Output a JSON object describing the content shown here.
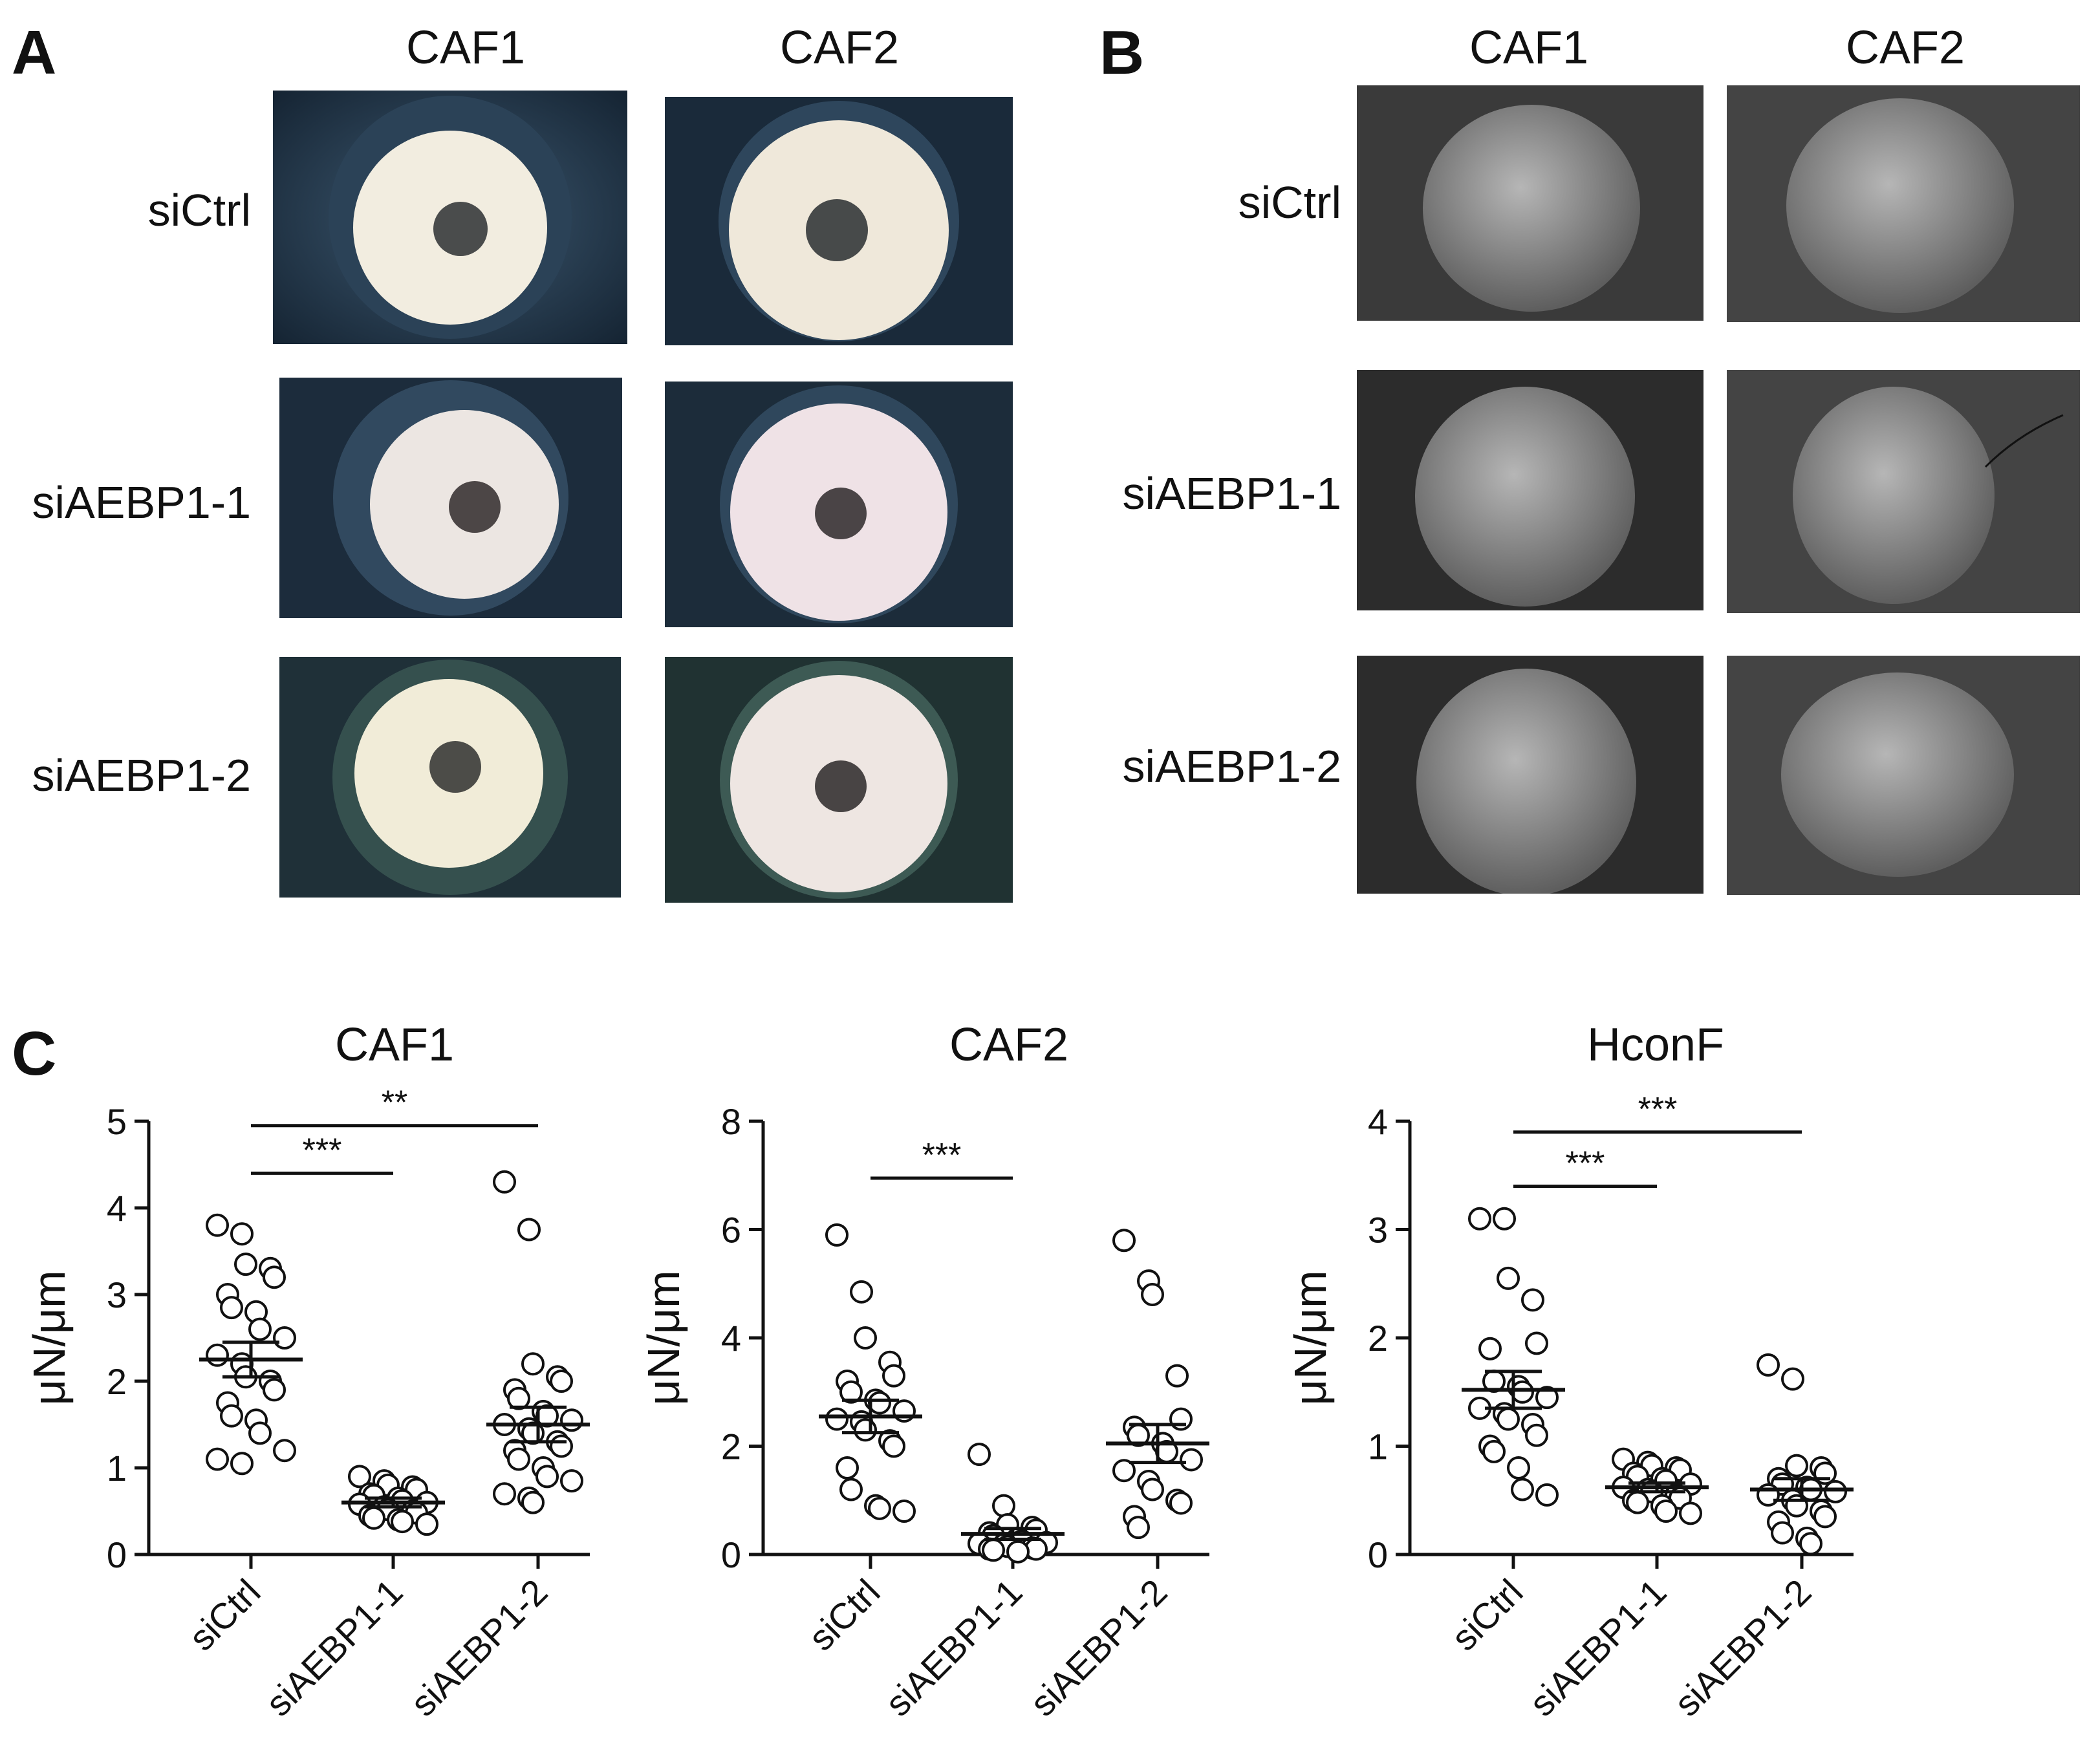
{
  "panels": {
    "A": {
      "letter": "A",
      "columns": [
        "CAF1",
        "CAF2"
      ],
      "rows": [
        "siCtrl",
        "siAEBP1-1",
        "siAEBP1-2"
      ]
    },
    "B": {
      "letter": "B",
      "columns": [
        "CAF1",
        "CAF2"
      ],
      "rows": [
        "siCtrl",
        "siAEBP1-1",
        "siAEBP1-2"
      ]
    },
    "C": {
      "letter": "C"
    }
  },
  "colors": {
    "ink": "#111111",
    "light_photo_bg": "#1c2c3a",
    "light_photo_disc": "#f2ede0",
    "sem_bg": "#3a3a3a",
    "sem_sphere": "#8a8a8a"
  },
  "chart_data": [
    {
      "type": "scatter",
      "title": "CAF1",
      "xlabel": "",
      "ylabel": "μN/μm",
      "ylim": [
        0,
        5
      ],
      "yticks": [
        0,
        1,
        2,
        3,
        4,
        5
      ],
      "categories": [
        "siCtrl",
        "siAEBP1-1",
        "siAEBP1-2"
      ],
      "series": [
        {
          "category": "siCtrl",
          "values": [
            3.8,
            3.7,
            3.35,
            3.3,
            3.2,
            3.0,
            2.85,
            2.8,
            2.6,
            2.5,
            2.3,
            2.2,
            2.05,
            2.0,
            1.9,
            1.75,
            1.6,
            1.55,
            1.4,
            1.2,
            1.1,
            1.05
          ],
          "mean": 2.25,
          "sem": 0.2
        },
        {
          "category": "siAEBP1-1",
          "values": [
            0.9,
            0.85,
            0.8,
            0.78,
            0.75,
            0.7,
            0.68,
            0.65,
            0.62,
            0.6,
            0.58,
            0.55,
            0.52,
            0.5,
            0.48,
            0.45,
            0.42,
            0.4,
            0.38,
            0.35
          ],
          "mean": 0.6,
          "sem": 0.05
        },
        {
          "category": "siAEBP1-2",
          "values": [
            4.3,
            3.75,
            2.2,
            2.05,
            2.0,
            1.9,
            1.8,
            1.65,
            1.6,
            1.55,
            1.5,
            1.45,
            1.4,
            1.3,
            1.25,
            1.2,
            1.1,
            1.0,
            0.9,
            0.85,
            0.7,
            0.65,
            0.6
          ],
          "mean": 1.5,
          "sem": 0.2
        }
      ],
      "significance": [
        {
          "from": "siCtrl",
          "to": "siAEBP1-1",
          "y": 4.4,
          "label": "***"
        },
        {
          "from": "siCtrl",
          "to": "siAEBP1-2",
          "y": 4.95,
          "label": "**"
        }
      ]
    },
    {
      "type": "scatter",
      "title": "CAF2",
      "xlabel": "",
      "ylabel": "μN/μm",
      "ylim": [
        0,
        8
      ],
      "yticks": [
        0,
        2,
        4,
        6,
        8
      ],
      "categories": [
        "siCtrl",
        "siAEBP1-1",
        "siAEBP1-2"
      ],
      "series": [
        {
          "category": "siCtrl",
          "values": [
            5.9,
            4.85,
            4.0,
            3.55,
            3.3,
            3.2,
            3.0,
            2.85,
            2.8,
            2.65,
            2.5,
            2.45,
            2.3,
            2.1,
            2.0,
            1.6,
            1.2,
            0.9,
            0.85,
            0.8
          ],
          "mean": 2.55,
          "sem": 0.3
        },
        {
          "category": "siAEBP1-1",
          "values": [
            1.85,
            0.9,
            0.55,
            0.5,
            0.45,
            0.4,
            0.35,
            0.3,
            0.25,
            0.22,
            0.2,
            0.18,
            0.15,
            0.12,
            0.1,
            0.1,
            0.08,
            0.05
          ],
          "mean": 0.38,
          "sem": 0.1
        },
        {
          "category": "siAEBP1-2",
          "values": [
            5.8,
            5.05,
            4.8,
            3.3,
            2.5,
            2.35,
            2.2,
            2.05,
            1.9,
            1.75,
            1.55,
            1.35,
            1.2,
            1.0,
            0.95,
            0.7,
            0.5
          ],
          "mean": 2.05,
          "sem": 0.35
        }
      ],
      "significance": [
        {
          "from": "siCtrl",
          "to": "siAEBP1-1",
          "y": 6.95,
          "label": "***"
        }
      ]
    },
    {
      "type": "scatter",
      "title": "HconF",
      "xlabel": "",
      "ylabel": "μN/μm",
      "ylim": [
        0,
        4
      ],
      "yticks": [
        0,
        1,
        2,
        3,
        4
      ],
      "categories": [
        "siCtrl",
        "siAEBP1-1",
        "siAEBP1-2"
      ],
      "series": [
        {
          "category": "siCtrl",
          "values": [
            3.1,
            3.1,
            2.55,
            2.35,
            1.95,
            1.9,
            1.6,
            1.55,
            1.5,
            1.45,
            1.35,
            1.3,
            1.25,
            1.2,
            1.1,
            1.0,
            0.95,
            0.8,
            0.6,
            0.55
          ],
          "mean": 1.52,
          "sem": 0.17
        },
        {
          "category": "siAEBP1-1",
          "values": [
            0.88,
            0.85,
            0.82,
            0.8,
            0.78,
            0.75,
            0.72,
            0.7,
            0.68,
            0.65,
            0.62,
            0.6,
            0.58,
            0.55,
            0.52,
            0.5,
            0.48,
            0.45,
            0.4,
            0.38
          ],
          "mean": 0.62,
          "sem": 0.04
        },
        {
          "category": "siAEBP1-2",
          "values": [
            1.75,
            1.62,
            0.82,
            0.8,
            0.75,
            0.7,
            0.65,
            0.62,
            0.6,
            0.58,
            0.55,
            0.5,
            0.45,
            0.4,
            0.35,
            0.3,
            0.2,
            0.15,
            0.1
          ],
          "mean": 0.6,
          "sem": 0.1
        }
      ],
      "significance": [
        {
          "from": "siCtrl",
          "to": "siAEBP1-1",
          "y": 3.4,
          "label": "***"
        },
        {
          "from": "siCtrl",
          "to": "siAEBP1-2",
          "y": 3.9,
          "label": "***"
        }
      ]
    }
  ]
}
